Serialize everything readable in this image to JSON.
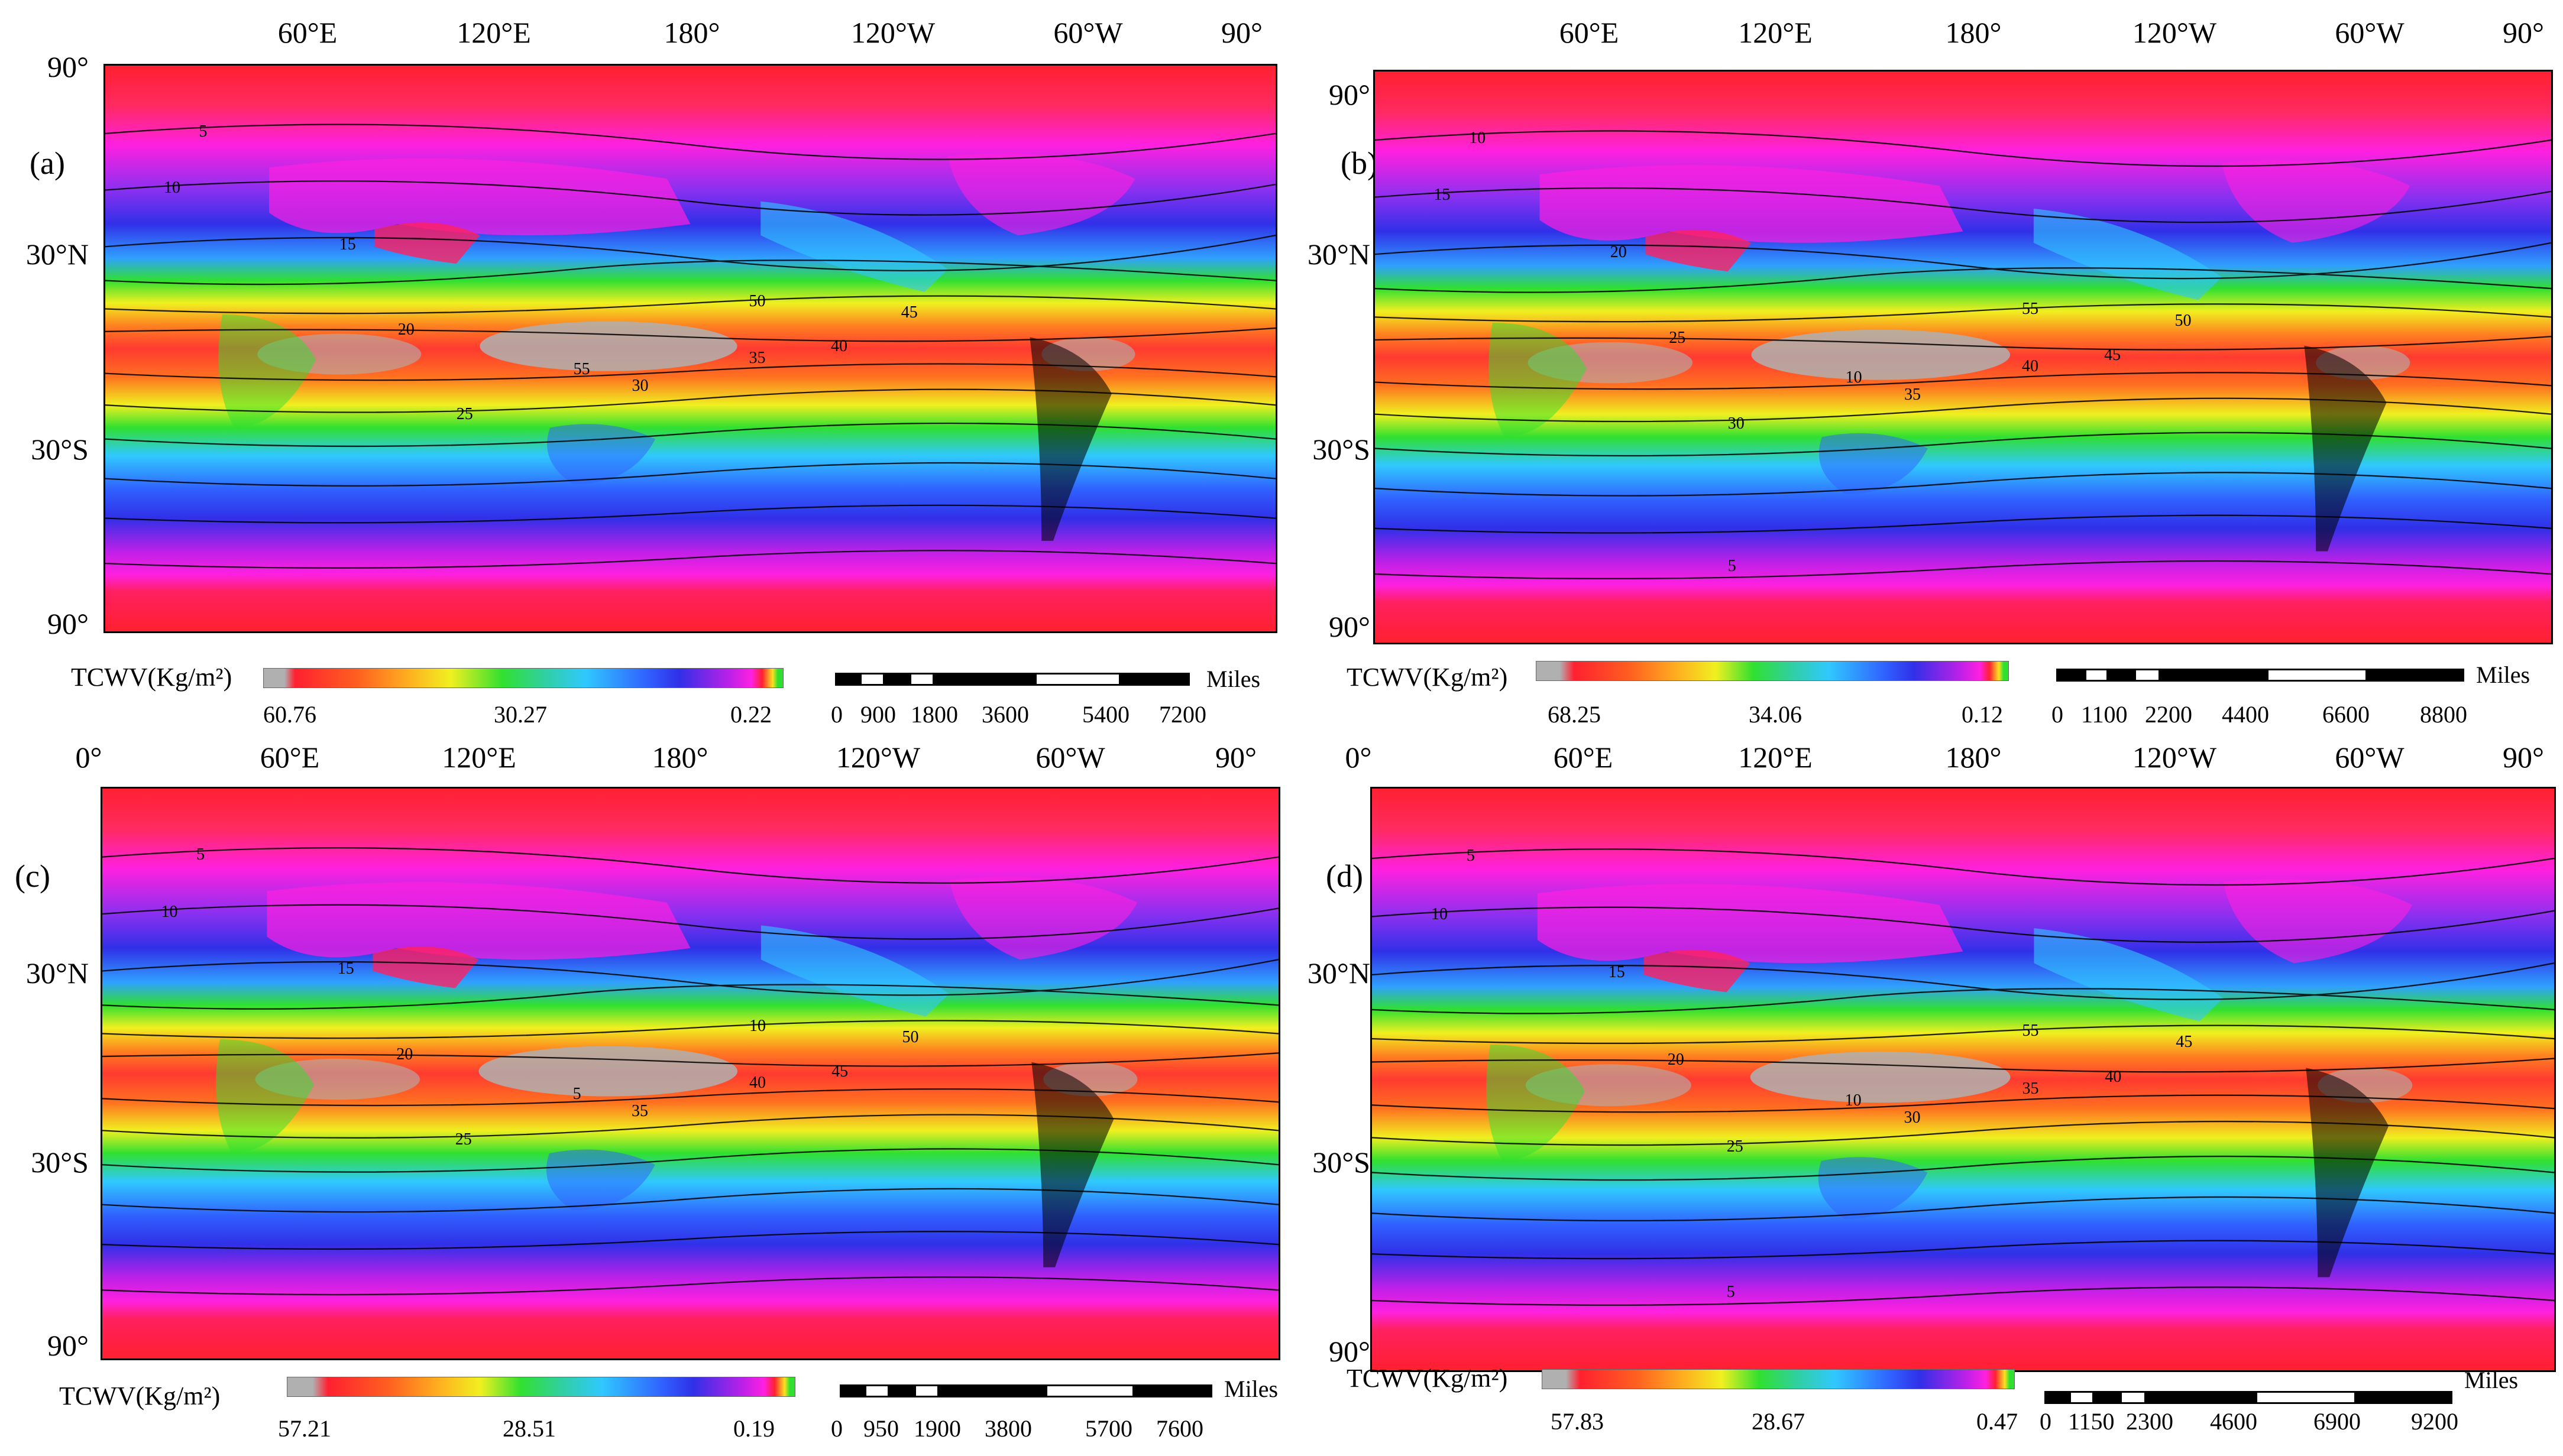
{
  "panels": [
    {
      "letter": "(a)",
      "lon_labels": [
        "60°E",
        "120°E",
        "180°",
        "120°W",
        "60°W",
        "90°"
      ],
      "lat_labels": [
        "90°",
        "30°N",
        "30°S",
        "90°"
      ],
      "contour_labels": [
        "5",
        "10",
        "15",
        "20",
        "25",
        "30",
        "35",
        "40",
        "45",
        "50",
        "55"
      ],
      "colorbar": {
        "title": "TCWV(Kg/m²)",
        "max": "60.76",
        "mid": "30.27",
        "min": "0.22"
      },
      "scalebar": {
        "ticks": [
          "0",
          "900",
          "1800",
          "3600",
          "5400",
          "7200"
        ],
        "unit": "Miles"
      }
    },
    {
      "letter": "(b)",
      "lon_labels": [
        "60°E",
        "120°E",
        "180°",
        "120°W",
        "60°W",
        "90°"
      ],
      "lat_labels": [
        "90°",
        "30°N",
        "30°S",
        "90°"
      ],
      "contour_labels": [
        "10",
        "15",
        "20",
        "25",
        "30",
        "35",
        "40",
        "45",
        "50",
        "55",
        "10",
        "5"
      ],
      "colorbar": {
        "title": "TCWV(Kg/m²)",
        "max": "68.25",
        "mid": "34.06",
        "min": "0.12"
      },
      "scalebar": {
        "ticks": [
          "0",
          "1100",
          "2200",
          "4400",
          "6600",
          "8800"
        ],
        "unit": "Miles"
      }
    },
    {
      "letter": "(c)",
      "lon_labels": [
        "0°",
        "60°E",
        "120°E",
        "180°",
        "120°W",
        "60°W",
        "90°"
      ],
      "lat_labels": [
        "30°N",
        "30°S",
        "90°"
      ],
      "contour_labels": [
        "5",
        "10",
        "15",
        "20",
        "25",
        "35",
        "40",
        "45",
        "50",
        "10",
        "5"
      ],
      "colorbar": {
        "title": "TCWV(Kg/m²)",
        "max": "57.21",
        "mid": "28.51",
        "min": "0.19"
      },
      "scalebar": {
        "ticks": [
          "0",
          "950",
          "1900",
          "3800",
          "5700",
          "7600"
        ],
        "unit": "Miles"
      }
    },
    {
      "letter": "(d)",
      "lon_labels": [
        "0°",
        "60°E",
        "120°E",
        "180°",
        "120°W",
        "60°W",
        "90°"
      ],
      "lat_labels": [
        "30°N",
        "30°S",
        "90°"
      ],
      "contour_labels": [
        "5",
        "10",
        "15",
        "20",
        "25",
        "30",
        "35",
        "40",
        "45",
        "55",
        "10",
        "5"
      ],
      "colorbar": {
        "title": "TCWV(Kg/m²)",
        "max": "57.83",
        "mid": "28.67",
        "min": "0.47"
      },
      "scalebar": {
        "ticks": [
          "0",
          "1150",
          "2300",
          "4600",
          "6900",
          "9200"
        ],
        "unit": "Miles"
      }
    }
  ],
  "colors": {
    "polar_red": "#ff2030",
    "magenta": "#ff20e0",
    "blue": "#3030e8",
    "cyan": "#30c8ff",
    "green": "#30e030",
    "yellow": "#f0f020",
    "orange": "#ff8020",
    "red": "#ff3a30",
    "grey": "#b0b0b0"
  }
}
